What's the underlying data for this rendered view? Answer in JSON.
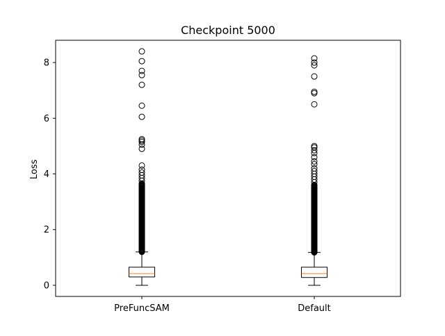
{
  "chart_data": {
    "type": "boxplot",
    "title": "Checkpoint 5000",
    "xlabel": "",
    "ylabel": "Loss",
    "ylim": [
      -0.4,
      8.8
    ],
    "yticks": [
      0,
      2,
      4,
      6,
      8
    ],
    "grid": false,
    "median_color": "#ff7f0e",
    "series": [
      {
        "category": "PreFuncSAM",
        "min": 0.0,
        "q1": 0.3,
        "median": 0.42,
        "q3": 0.65,
        "whisker_high": 1.2,
        "outlier_dense_range": [
          1.2,
          3.65
        ],
        "outliers": [
          3.75,
          3.85,
          3.95,
          4.05,
          4.15,
          4.3,
          4.9,
          5.05,
          5.15,
          5.2,
          5.25,
          6.05,
          6.45,
          7.2,
          7.55,
          7.7,
          8.05,
          8.4
        ]
      },
      {
        "category": "Default",
        "min": 0.0,
        "q1": 0.28,
        "median": 0.42,
        "q3": 0.65,
        "whisker_high": 1.18,
        "outlier_dense_range": [
          1.18,
          3.6
        ],
        "outliers": [
          3.7,
          3.8,
          3.9,
          4.0,
          4.1,
          4.2,
          4.35,
          4.45,
          4.6,
          4.75,
          4.85,
          4.95,
          5.0,
          6.5,
          6.9,
          6.95,
          7.5,
          7.9,
          8.0,
          8.15
        ]
      }
    ]
  }
}
